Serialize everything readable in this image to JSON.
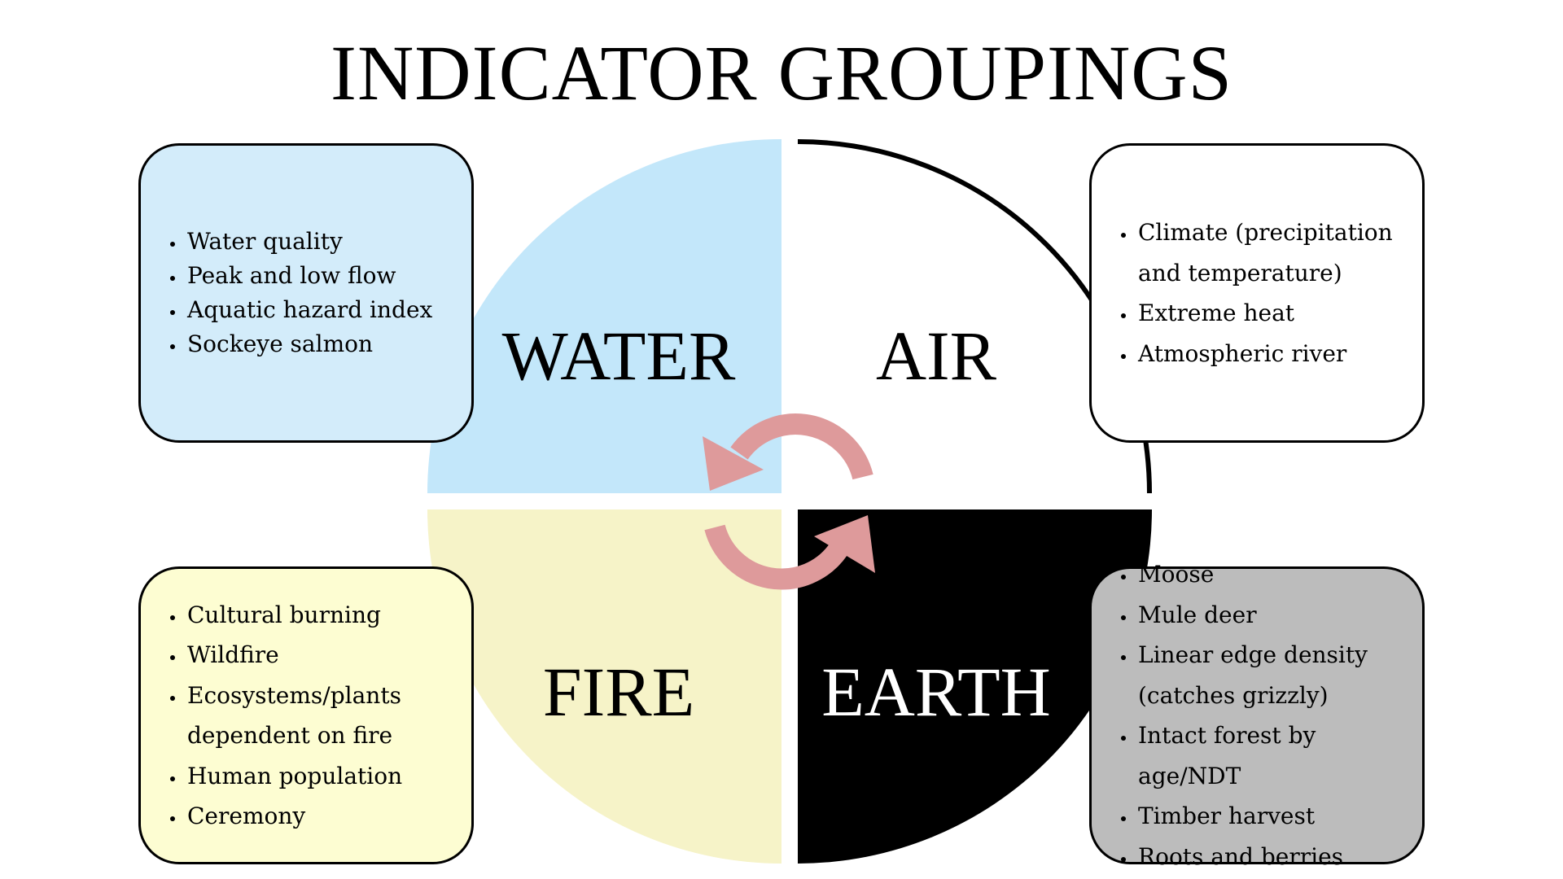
{
  "title": "INDICATOR GROUPINGS",
  "colors": {
    "water": "#c3e7fa",
    "air": "#ffffff",
    "fire": "#f6f3c8",
    "earth": "#000000",
    "arrow": "#de9a9b"
  },
  "quadrants": {
    "water": {
      "label": "WATER",
      "items": [
        "Water quality",
        "Peak and low flow",
        "Aquatic hazard index",
        "Sockeye salmon"
      ]
    },
    "air": {
      "label": "AIR",
      "items": [
        "Climate (precipitation and temperature)",
        "Extreme heat",
        "Atmospheric river"
      ]
    },
    "fire": {
      "label": "FIRE",
      "items": [
        "Cultural burning",
        "Wildfire",
        "Ecosystems/plants dependent on fire",
        "Human population",
        "Ceremony"
      ]
    },
    "earth": {
      "label": "EARTH",
      "items": [
        "Moose",
        "Mule deer",
        "Linear edge density (catches grizzly)",
        "Intact forest by age/NDT",
        "Timber harvest",
        "Roots and berries"
      ]
    }
  }
}
